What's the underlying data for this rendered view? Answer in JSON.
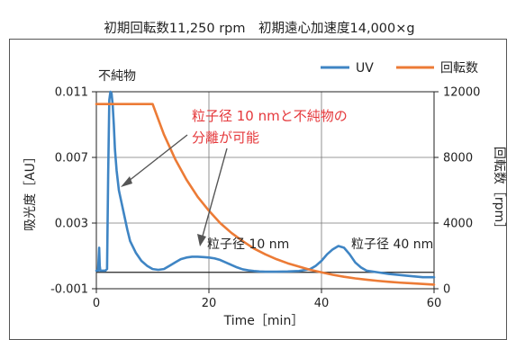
{
  "header_text": "初期回転数11,250 rpm　初期遠心加速度14,000×g",
  "chart_data": {
    "type": "line",
    "title": "",
    "xlabel": "Time［min］",
    "ylabel_left": "吸光度［AU］",
    "ylabel_right": "回転数［rpm］",
    "x_range": [
      0,
      60
    ],
    "y_left_range": [
      -0.001,
      0.011
    ],
    "y_right_range": [
      0,
      12000
    ],
    "x_ticks": [
      "0",
      "20",
      "40",
      "60"
    ],
    "y_left_ticks": [
      "-0.001",
      "0.003",
      "0.007",
      "0.011"
    ],
    "y_right_ticks": [
      "0",
      "4000",
      "8000",
      "12000"
    ],
    "grid": true,
    "legend_position": "top-right",
    "colors": {
      "UV": "#3f85c4",
      "回転数": "#ec7b36",
      "annotation_red": "#e5383b",
      "baseline": "#222222"
    },
    "series": [
      {
        "name": "UV",
        "axis": "left",
        "x": [
          0,
          0.3,
          0.5,
          0.6,
          0.7,
          0.9,
          1.3,
          1.6,
          1.9,
          2.1,
          2.3,
          2.5,
          2.7,
          2.9,
          3.1,
          3.3,
          3.6,
          4,
          4.5,
          5,
          5.5,
          6,
          7,
          8,
          9,
          10,
          11,
          12,
          13,
          14,
          15,
          16,
          17,
          18,
          19,
          20,
          21,
          22,
          23,
          24,
          25,
          26,
          27,
          28,
          29,
          30,
          32,
          34,
          36,
          38,
          39,
          40,
          41,
          42,
          43,
          44,
          45,
          46,
          47,
          48,
          50,
          52,
          55,
          58,
          60
        ],
        "y": [
          0.0001,
          0.0001,
          0.0015,
          0.0004,
          0.0001,
          0.0001,
          0.0001,
          0.0001,
          0.0002,
          0.006,
          0.0105,
          0.011,
          0.0109,
          0.0102,
          0.009,
          0.0075,
          0.0062,
          0.005,
          0.0042,
          0.0034,
          0.0026,
          0.0019,
          0.0012,
          0.0007,
          0.0004,
          0.0002,
          0.00015,
          0.0002,
          0.0004,
          0.0006,
          0.0008,
          0.0009,
          0.00095,
          0.00095,
          0.00093,
          0.0009,
          0.00085,
          0.00075,
          0.0006,
          0.00045,
          0.0003,
          0.00018,
          0.00012,
          8e-05,
          5e-05,
          4e-05,
          4e-05,
          5e-05,
          8e-05,
          0.0002,
          0.0004,
          0.0007,
          0.0011,
          0.0014,
          0.0016,
          0.0015,
          0.0011,
          0.0006,
          0.0003,
          0.0001,
          0,
          -0.0001,
          -0.0002,
          -0.0003,
          -0.0003
        ]
      },
      {
        "name": "回転数",
        "axis": "right",
        "x": [
          0,
          2,
          4,
          6,
          8,
          10,
          12,
          14,
          16,
          18,
          20,
          22,
          24,
          26,
          28,
          30,
          32,
          34,
          36,
          38,
          40,
          42,
          44,
          46,
          48,
          50,
          52,
          54,
          56,
          58,
          60
        ],
        "y": [
          11250,
          11250,
          11250,
          11250,
          11250,
          11250,
          9400,
          7900,
          6650,
          5600,
          4750,
          4000,
          3400,
          2900,
          2450,
          2100,
          1800,
          1550,
          1350,
          1150,
          1000,
          850,
          730,
          630,
          550,
          480,
          420,
          370,
          330,
          290,
          250
        ]
      }
    ],
    "baseline_y_left": 0,
    "annotations": [
      {
        "text": "不純物",
        "color": "#222222"
      },
      {
        "text": "粒子径 10 nmと不純物の",
        "color": "#e5383b"
      },
      {
        "text": "分離が可能",
        "color": "#e5383b"
      },
      {
        "text": "粒子径 10 nm",
        "color": "#222222"
      },
      {
        "text": "粒子径 40 nm",
        "color": "#222222"
      }
    ],
    "legend": [
      {
        "label": "UV",
        "series": "UV"
      },
      {
        "label": "回転数",
        "series": "回転数"
      }
    ]
  }
}
